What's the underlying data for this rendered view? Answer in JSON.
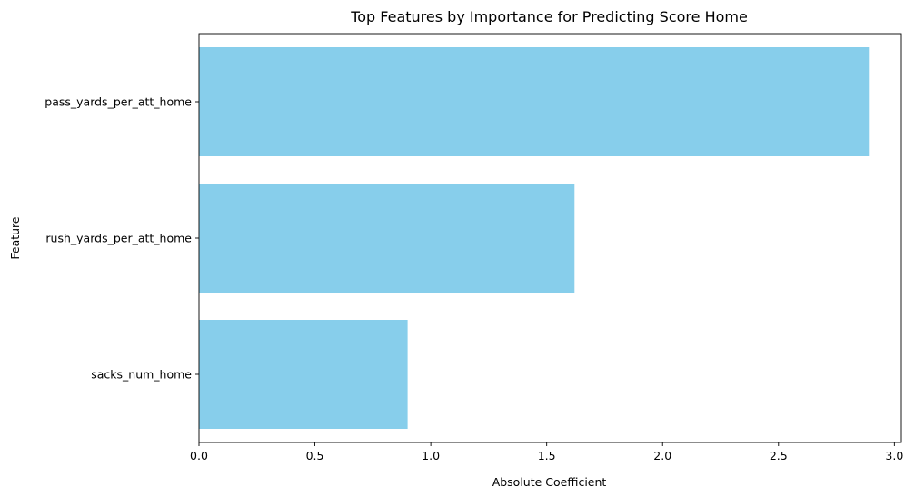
{
  "chart_data": {
    "type": "bar",
    "orientation": "horizontal",
    "title": "Top Features by Importance for Predicting Score Home",
    "xlabel": "Absolute Coefficient",
    "ylabel": "Feature",
    "categories": [
      "pass_yards_per_att_home",
      "rush_yards_per_att_home",
      "sacks_num_home"
    ],
    "values": [
      2.89,
      1.62,
      0.9
    ],
    "xlim": [
      0,
      3.03
    ],
    "xticks": [
      0.0,
      0.5,
      1.0,
      1.5,
      2.0,
      2.5,
      3.0
    ],
    "xtick_labels": [
      "0.0",
      "0.5",
      "1.0",
      "1.5",
      "2.0",
      "2.5",
      "3.0"
    ],
    "bar_color": "#87ceeb",
    "grid": false,
    "legend": "none"
  }
}
